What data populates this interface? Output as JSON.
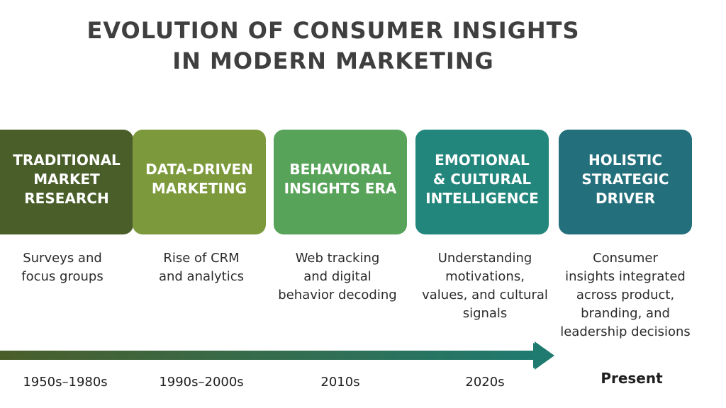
{
  "title": {
    "line1": "EVOLUTION OF CONSUMER INSIGHTS",
    "line2": "IN MODERN MARKETING"
  },
  "stages": [
    {
      "label": "TRADITIONAL\nMARKET\nRESEARCH",
      "description": "Surveys and\nfocus groups",
      "period": "1950s–1980s",
      "color": "#4a5e2a"
    },
    {
      "label": "DATA-DRIVEN\nMARKETING",
      "description": "Rise of CRM\nand analytics",
      "period": "1990s–2000s",
      "color": "#7c9a3c"
    },
    {
      "label": "BEHAVIORAL\nINSIGHTS ERA",
      "description": "Web tracking\nand digital\nbehavior decoding",
      "period": "2010s",
      "color": "#58a35a"
    },
    {
      "label": "EMOTIONAL\n& CULTURAL\nINTELLIGENCE",
      "description": "Understanding\nmotivations,\nvalues, and cultural\nsignals",
      "period": "2020s",
      "color": "#22867c"
    },
    {
      "label": "HOLISTIC\nSTRATEGIC\nDRIVER",
      "description": "Consumer\ninsights integrated\nacross product,\nbranding, and\nleadership decisions",
      "period": "Present",
      "color": "#236f7c"
    }
  ],
  "timeline": {
    "start_color": "#4a5e2a",
    "end_color": "#1f7a70"
  }
}
